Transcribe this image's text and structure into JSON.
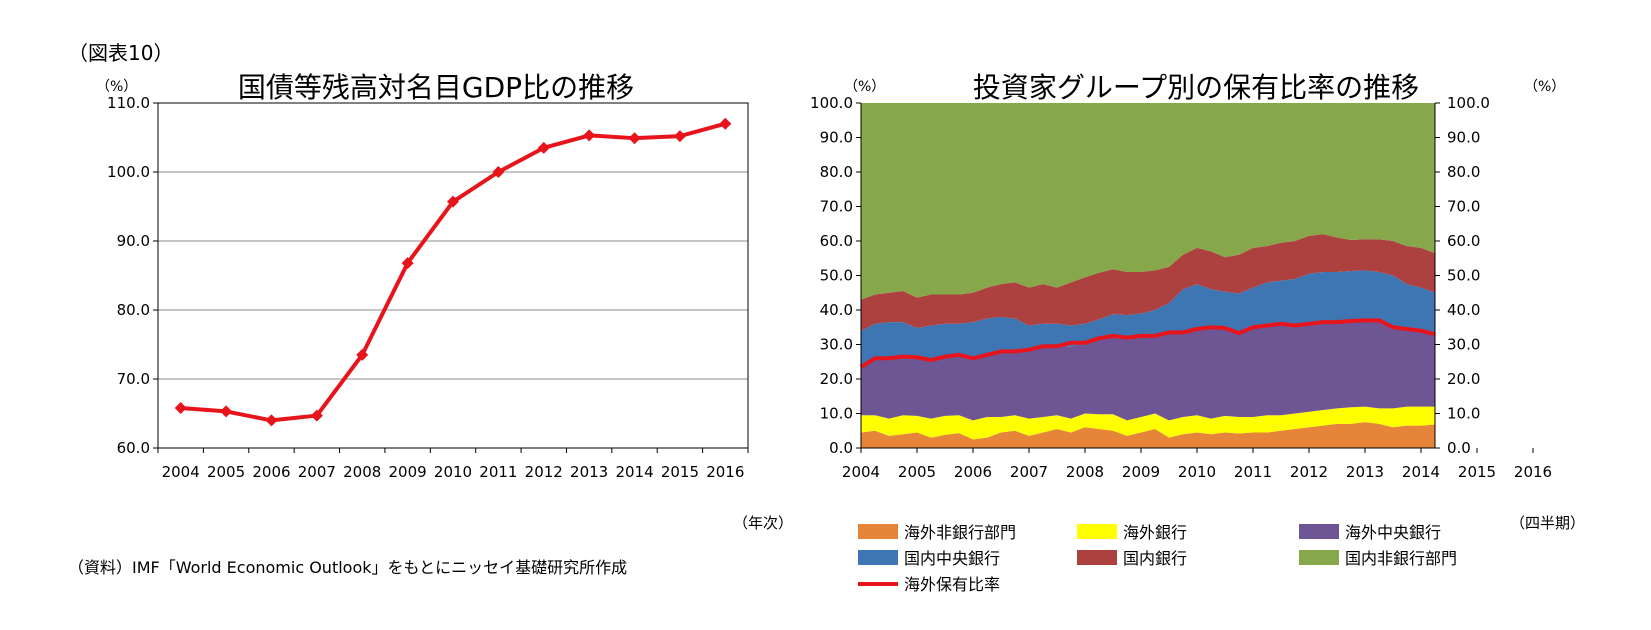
{
  "figure_label": "（図表10）",
  "source_note": "（資料）IMF「World Economic Outlook」をもとにニッセイ基礎研究所作成",
  "left_unit": "（%）",
  "left_xunit": "（年次）",
  "right_unit_left": "（%）",
  "right_unit_right": "（%）",
  "right_xunit": "（四半期）",
  "chart_data": [
    {
      "type": "line",
      "title": "国債等残高対名目GDP比の推移",
      "ylim": [
        60,
        110
      ],
      "yticks": [
        "60.0",
        "70.0",
        "80.0",
        "90.0",
        "100.0",
        "110.0"
      ],
      "categories": [
        "2004",
        "2005",
        "2006",
        "2007",
        "2008",
        "2009",
        "2010",
        "2011",
        "2012",
        "2013",
        "2014",
        "2015",
        "2016"
      ],
      "values": [
        65.8,
        65.3,
        64.0,
        64.7,
        73.5,
        86.8,
        95.7,
        100.0,
        103.5,
        105.3,
        104.9,
        105.2,
        107.0
      ],
      "color": "#e8141b",
      "grid": true
    },
    {
      "type": "area",
      "title": "投資家グループ別の保有比率の推移",
      "ylim": [
        0,
        100
      ],
      "yticks": [
        "0.0",
        "10.0",
        "20.0",
        "30.0",
        "40.0",
        "50.0",
        "60.0",
        "70.0",
        "80.0",
        "90.0",
        "100.0"
      ],
      "x_labels": [
        "2004",
        "2005",
        "2006",
        "2007",
        "2008",
        "2009",
        "2010",
        "2011",
        "2012",
        "2013",
        "2014",
        "2015",
        "2016"
      ],
      "quarters_per_year": 4,
      "stacked": true,
      "series": [
        {
          "name": "海外非銀行部門",
          "color": "#e6843a",
          "values": [
            4.5,
            5.0,
            3.5,
            4.0,
            4.5,
            3.0,
            3.8,
            4.3,
            2.5,
            3.0,
            4.5,
            5.0,
            3.5,
            4.5,
            5.5,
            4.5,
            6.0,
            5.5,
            5.0,
            3.5,
            4.5,
            5.5,
            3.0,
            4.0,
            4.5,
            4.0,
            4.5,
            4.2,
            4.5,
            4.5,
            5.0,
            5.5,
            6.0,
            6.5,
            7.0,
            7.0,
            7.5,
            7.0,
            6.0,
            6.5,
            6.5,
            6.8
          ]
        },
        {
          "name": "海外銀行",
          "color": "#ffff00",
          "values": [
            5.0,
            4.5,
            5.0,
            5.5,
            4.8,
            5.5,
            5.5,
            5.2,
            5.5,
            6.0,
            4.5,
            4.5,
            5.0,
            4.5,
            4.0,
            4.0,
            4.0,
            4.3,
            4.8,
            4.5,
            4.5,
            4.5,
            5.0,
            5.0,
            5.0,
            4.5,
            4.8,
            4.8,
            4.5,
            5.0,
            4.5,
            4.5,
            4.5,
            4.5,
            4.5,
            4.8,
            4.5,
            4.5,
            5.5,
            5.5,
            5.5,
            5.2
          ]
        },
        {
          "name": "海外中央銀行",
          "color": "#6e5694",
          "values": [
            14.0,
            16.5,
            17.5,
            17.5,
            17.0,
            17.5,
            17.2,
            17.5,
            18.0,
            18.5,
            19.0,
            18.5,
            20.0,
            20.5,
            20.0,
            21.0,
            20.5,
            22.5,
            23.0,
            24.0,
            23.5,
            22.5,
            25.5,
            24.5,
            25.5,
            26.5,
            25.5,
            24.3,
            26.0,
            26.0,
            26.5,
            25.5,
            25.5,
            25.5,
            25.0,
            25.5,
            25.0,
            25.5,
            23.5,
            22.5,
            22.0,
            21.0
          ]
        },
        {
          "name": "国内中央銀行",
          "color": "#3e76b3",
          "values": [
            10.5,
            10.0,
            10.5,
            9.5,
            8.5,
            9.5,
            9.5,
            9.0,
            10.5,
            10.0,
            10.0,
            9.5,
            7.0,
            6.5,
            6.5,
            6.0,
            5.5,
            5.0,
            6.0,
            6.5,
            6.5,
            7.5,
            8.5,
            12.5,
            12.5,
            11.0,
            10.5,
            11.5,
            11.5,
            12.5,
            12.5,
            13.5,
            14.5,
            14.5,
            14.5,
            14.0,
            14.5,
            14.0,
            15.0,
            13.0,
            12.5,
            12.0
          ]
        },
        {
          "name": "国内銀行",
          "color": "#ac4140",
          "values": [
            9.0,
            8.5,
            8.5,
            9.0,
            8.8,
            9.0,
            8.5,
            8.5,
            8.5,
            9.0,
            9.5,
            10.5,
            11.0,
            11.5,
            10.5,
            12.5,
            13.5,
            13.5,
            13.0,
            12.5,
            12.0,
            11.5,
            10.5,
            10.0,
            10.5,
            11.0,
            10.0,
            11.2,
            11.5,
            10.5,
            11.0,
            11.0,
            11.0,
            11.0,
            10.0,
            9.0,
            9.0,
            9.5,
            10.0,
            11.0,
            11.5,
            11.5
          ]
        },
        {
          "name": "国内非銀行部門",
          "color": "#86a74a",
          "values": [
            57.0,
            55.5,
            55.0,
            54.5,
            56.4,
            55.5,
            55.5,
            55.5,
            55.0,
            53.5,
            52.5,
            52.0,
            53.5,
            52.5,
            53.5,
            52.0,
            50.5,
            49.2,
            48.2,
            49.0,
            49.0,
            48.5,
            47.5,
            44.0,
            42.0,
            43.0,
            44.7,
            44.0,
            42.0,
            41.5,
            40.5,
            40.0,
            38.5,
            38.0,
            39.0,
            39.7,
            39.5,
            39.5,
            40.0,
            41.5,
            42.0,
            43.5
          ]
        }
      ],
      "overlay": {
        "name": "海外保有比率",
        "color": "#e8141b",
        "values": [
          23.5,
          26.0,
          26.0,
          26.5,
          26.3,
          25.5,
          26.5,
          27.0,
          26.0,
          27.0,
          28.0,
          28.0,
          28.5,
          29.5,
          29.5,
          30.5,
          30.5,
          31.8,
          32.5,
          32.0,
          32.5,
          32.5,
          33.5,
          33.5,
          34.5,
          35.0,
          34.8,
          33.3,
          35.0,
          35.5,
          36.0,
          35.5,
          36.0,
          36.5,
          36.5,
          36.8,
          37.0,
          37.0,
          35.0,
          34.5,
          34.0,
          33.0
        ]
      },
      "legend": [
        "海外非銀行部門",
        "海外銀行",
        "海外中央銀行",
        "国内中央銀行",
        "国内銀行",
        "国内非銀行部門",
        "海外保有比率"
      ],
      "legend_placement": "bottom"
    }
  ]
}
